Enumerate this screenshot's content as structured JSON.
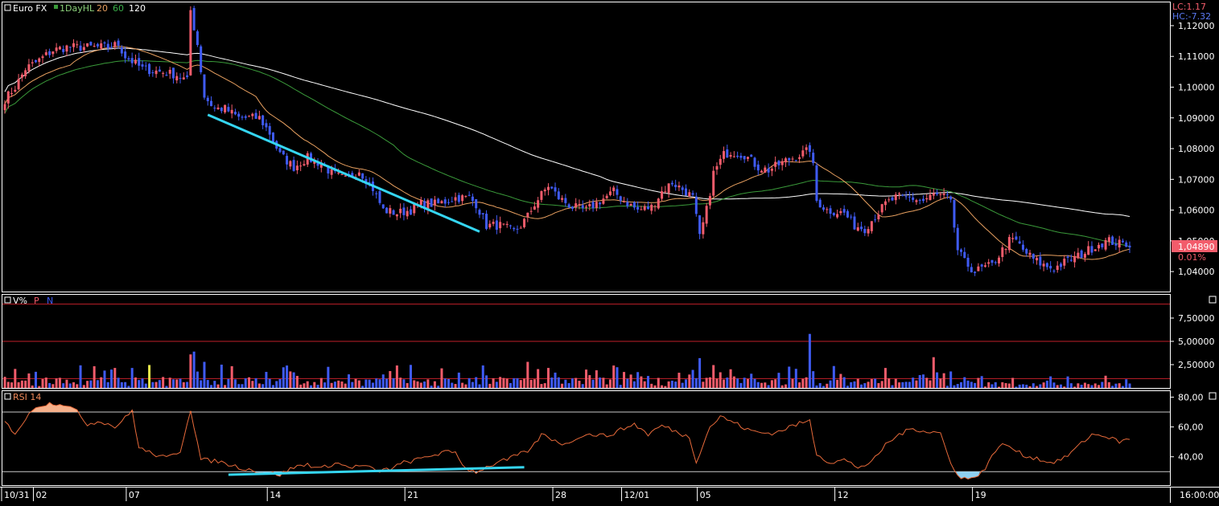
{
  "colors": {
    "background": "#000000",
    "up": "#f25c6b",
    "down": "#3f5bf5",
    "sma20": "#e8a060",
    "sma60": "#3a9a3a",
    "sma120": "#ffffff",
    "trendline": "#35d6f2",
    "rsi_line": "#e86a3a",
    "rsi_overbought_fill": "#f6b08a",
    "rsi_oversold_fill": "#8ed0f0",
    "volume_ref_line": "#c0202a",
    "price_tag_bg": "#f25c6b",
    "lc_text": "#f25c6b",
    "hc_text": "#5a7af5"
  },
  "price_panel": {
    "symbol": "Euro FX",
    "interval": "1DayHL",
    "ma_labels": [
      "20",
      "60",
      "120"
    ],
    "lc_label": "LC:1.17",
    "hc_label": "HC:-7.32",
    "current_price": "1,04890",
    "change": "0.01%"
  },
  "volume_panel": {
    "title": "V%",
    "legend_p": "P",
    "legend_n": "N"
  },
  "rsi_panel": {
    "title": "RSI 14"
  },
  "time_axis": {
    "labels": [
      "10/31",
      "02",
      "07",
      "14",
      "21",
      "28",
      "12/01",
      "05",
      "12",
      "19"
    ],
    "time": "16:00:00"
  },
  "chart_data": [
    {
      "type": "candlestick",
      "title": "Euro FX",
      "y_ticks": [
        "1,12000",
        "1,11000",
        "1,10000",
        "1,09000",
        "1,08000",
        "1,07000",
        "1,06000",
        "1,05000",
        "1,04000"
      ],
      "ylim": [
        1.0335,
        1.1273
      ],
      "moving_averages": [
        20,
        60,
        120
      ],
      "anchors": [
        [
          0,
          1.096
        ],
        [
          3,
          1.1
        ],
        [
          6,
          1.106
        ],
        [
          9,
          1.108
        ],
        [
          14,
          1.112
        ],
        [
          18,
          1.113
        ],
        [
          24,
          1.113
        ],
        [
          30,
          1.113
        ],
        [
          33,
          1.114
        ],
        [
          35,
          1.11
        ],
        [
          40,
          1.106
        ],
        [
          45,
          1.105
        ],
        [
          50,
          1.104
        ],
        [
          53,
          1.102
        ],
        [
          54,
          1.125
        ],
        [
          56,
          1.114
        ],
        [
          58,
          1.097
        ],
        [
          61,
          1.093
        ],
        [
          64,
          1.093
        ],
        [
          68,
          1.09
        ],
        [
          74,
          1.09
        ],
        [
          77,
          1.085
        ],
        [
          80,
          1.078
        ],
        [
          84,
          1.074
        ],
        [
          88,
          1.077
        ],
        [
          92,
          1.075
        ],
        [
          95,
          1.072
        ],
        [
          99,
          1.07
        ],
        [
          103,
          1.073
        ],
        [
          107,
          1.067
        ],
        [
          110,
          1.06
        ],
        [
          114,
          1.059
        ],
        [
          118,
          1.06
        ],
        [
          121,
          1.062
        ],
        [
          126,
          1.062
        ],
        [
          131,
          1.064
        ],
        [
          135,
          1.064
        ],
        [
          137,
          1.062
        ],
        [
          140,
          1.055
        ],
        [
          144,
          1.055
        ],
        [
          148,
          1.053
        ],
        [
          150,
          1.055
        ],
        [
          152,
          1.058
        ],
        [
          154,
          1.062
        ],
        [
          156,
          1.065
        ],
        [
          158,
          1.068
        ],
        [
          161,
          1.064
        ],
        [
          165,
          1.061
        ],
        [
          169,
          1.06
        ],
        [
          173,
          1.063
        ],
        [
          177,
          1.066
        ],
        [
          180,
          1.063
        ],
        [
          184,
          1.06
        ],
        [
          188,
          1.061
        ],
        [
          191,
          1.066
        ],
        [
          194,
          1.069
        ],
        [
          198,
          1.066
        ],
        [
          200,
          1.064
        ],
        [
          202,
          1.051
        ],
        [
          204,
          1.06
        ],
        [
          206,
          1.072
        ],
        [
          209,
          1.078
        ],
        [
          211,
          1.079
        ],
        [
          215,
          1.078
        ],
        [
          219,
          1.074
        ],
        [
          222,
          1.073
        ],
        [
          227,
          1.076
        ],
        [
          231,
          1.078
        ],
        [
          233,
          1.079
        ],
        [
          234,
          1.08
        ],
        [
          235,
          1.074
        ],
        [
          236,
          1.063
        ],
        [
          239,
          1.06
        ],
        [
          244,
          1.059
        ],
        [
          247,
          1.055
        ],
        [
          250,
          1.054
        ],
        [
          253,
          1.058
        ],
        [
          256,
          1.062
        ],
        [
          259,
          1.064
        ],
        [
          263,
          1.064
        ],
        [
          267,
          1.063
        ],
        [
          270,
          1.065
        ],
        [
          274,
          1.064
        ],
        [
          275,
          1.062
        ],
        [
          277,
          1.047
        ],
        [
          279,
          1.043
        ],
        [
          282,
          1.04
        ],
        [
          284,
          1.041
        ],
        [
          287,
          1.042
        ],
        [
          290,
          1.047
        ],
        [
          292,
          1.05
        ],
        [
          294,
          1.05
        ],
        [
          296,
          1.047
        ],
        [
          299,
          1.044
        ],
        [
          302,
          1.042
        ],
        [
          305,
          1.041
        ],
        [
          308,
          1.043
        ],
        [
          312,
          1.045
        ],
        [
          315,
          1.047
        ],
        [
          318,
          1.049
        ],
        [
          321,
          1.05
        ],
        [
          324,
          1.049
        ],
        [
          327,
          1.049
        ]
      ],
      "trendline": [
        [
          1.091,
          1.053
        ]
      ]
    },
    {
      "type": "bar",
      "title": "V%",
      "y_ticks": [
        "7,50000",
        "5,00000",
        "2,50000"
      ],
      "ylim": [
        0,
        10
      ],
      "reference_lines": [
        1.0,
        5.0,
        9.0
      ],
      "series": [
        {
          "name": "P"
        },
        {
          "name": "N"
        }
      ]
    },
    {
      "type": "line",
      "title": "RSI 14",
      "y_ticks": [
        "80,00",
        "60,00",
        "40,00"
      ],
      "ylim": [
        21,
        84
      ],
      "levels": [
        70,
        30
      ],
      "anchors": [
        [
          0,
          63
        ],
        [
          3,
          56
        ],
        [
          6,
          65
        ],
        [
          9,
          74
        ],
        [
          14,
          76
        ],
        [
          18,
          75
        ],
        [
          21,
          70
        ],
        [
          24,
          62
        ],
        [
          28,
          64
        ],
        [
          32,
          60
        ],
        [
          35,
          66
        ],
        [
          37,
          71
        ],
        [
          39,
          46
        ],
        [
          43,
          42
        ],
        [
          47,
          39
        ],
        [
          51,
          44
        ],
        [
          54,
          72
        ],
        [
          57,
          38
        ],
        [
          62,
          37
        ],
        [
          68,
          33
        ],
        [
          74,
          30
        ],
        [
          80,
          28
        ],
        [
          84,
          33
        ],
        [
          88,
          35
        ],
        [
          92,
          32
        ],
        [
          96,
          36
        ],
        [
          100,
          33
        ],
        [
          105,
          34
        ],
        [
          108,
          30
        ],
        [
          112,
          32
        ],
        [
          116,
          36
        ],
        [
          120,
          38
        ],
        [
          124,
          41
        ],
        [
          128,
          43
        ],
        [
          131,
          43
        ],
        [
          134,
          32
        ],
        [
          137,
          30
        ],
        [
          140,
          33
        ],
        [
          143,
          36
        ],
        [
          146,
          38
        ],
        [
          150,
          42
        ],
        [
          153,
          45
        ],
        [
          156,
          55
        ],
        [
          159,
          52
        ],
        [
          163,
          48
        ],
        [
          167,
          54
        ],
        [
          171,
          55
        ],
        [
          175,
          54
        ],
        [
          179,
          58
        ],
        [
          183,
          62
        ],
        [
          187,
          55
        ],
        [
          191,
          61
        ],
        [
          195,
          57
        ],
        [
          199,
          53
        ],
        [
          201,
          37
        ],
        [
          205,
          60
        ],
        [
          208,
          67
        ],
        [
          212,
          63
        ],
        [
          216,
          58
        ],
        [
          220,
          56
        ],
        [
          224,
          56
        ],
        [
          228,
          60
        ],
        [
          232,
          63
        ],
        [
          234,
          64
        ],
        [
          236,
          42
        ],
        [
          240,
          36
        ],
        [
          244,
          38
        ],
        [
          248,
          33
        ],
        [
          252,
          36
        ],
        [
          256,
          48
        ],
        [
          260,
          55
        ],
        [
          264,
          59
        ],
        [
          268,
          57
        ],
        [
          272,
          56
        ],
        [
          275,
          35
        ],
        [
          278,
          26
        ],
        [
          281,
          25
        ],
        [
          285,
          32
        ],
        [
          289,
          48
        ],
        [
          292,
          47
        ],
        [
          296,
          41
        ],
        [
          300,
          39
        ],
        [
          304,
          36
        ],
        [
          308,
          39
        ],
        [
          312,
          47
        ],
        [
          316,
          55
        ],
        [
          320,
          54
        ],
        [
          324,
          50
        ],
        [
          327,
          52
        ]
      ],
      "trendline": [
        [
          28,
          33
        ]
      ]
    }
  ]
}
